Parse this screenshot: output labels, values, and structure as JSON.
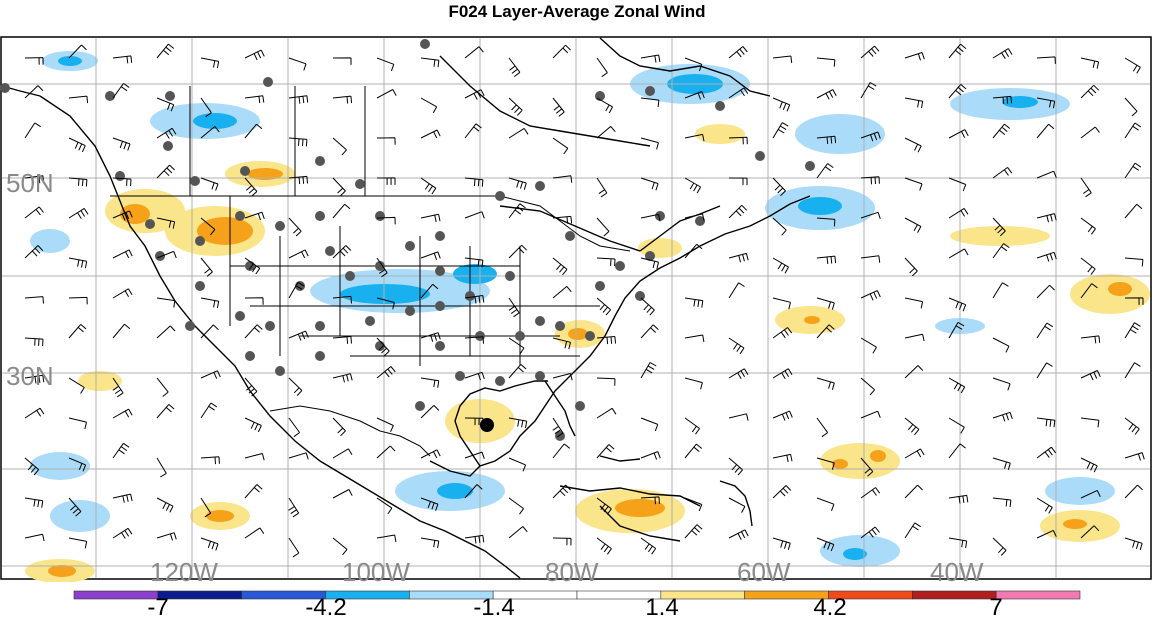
{
  "title": "F024 Layer-Average Zonal Wind",
  "map": {
    "lat_labels": [
      "50N",
      "30N"
    ],
    "lon_labels": [
      "120W",
      "100W",
      "80W",
      "60W",
      "40W"
    ],
    "colors": {
      "ocean_land_bg": "#ffffff",
      "coastline": "#000000",
      "grid": "#b0b0b0",
      "station_dot": "#555555",
      "negative_light": "#aadcf9",
      "negative_mid": "#1ab0ef",
      "positive_light": "#fbe58a",
      "positive_mid": "#f5a21a"
    }
  },
  "colorbar": {
    "labels": [
      "-7",
      "-4.2",
      "-1.4",
      "1.4",
      "4.2",
      "7"
    ],
    "bins": [
      "#8c3fcc",
      "#0b1a8c",
      "#2a57d6",
      "#19b0ef",
      "#a8dcf9",
      "#ffffff",
      "#ffffff",
      "#fbe58a",
      "#f5a21a",
      "#ef4a1a",
      "#b01e1e",
      "#f27ab0"
    ]
  }
}
